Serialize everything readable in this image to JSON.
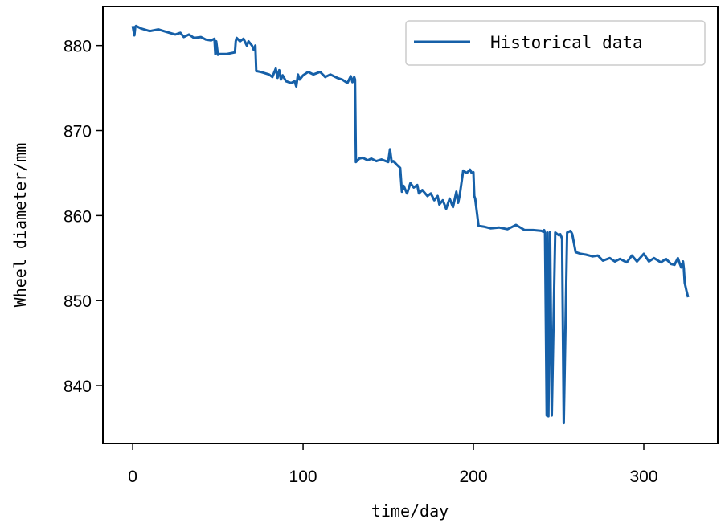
{
  "chart_data": {
    "type": "line",
    "title": "",
    "xlabel": "time/day",
    "ylabel": "Wheel diameter/mm",
    "xlim": [
      -17.5,
      343.4
    ],
    "ylim": [
      833.2,
      884.6
    ],
    "xticks": [
      0,
      100,
      200,
      300
    ],
    "yticks": [
      840,
      850,
      860,
      870,
      880
    ],
    "grid": false,
    "legend_position": "top-right",
    "line_color": "#1660a8",
    "series": [
      {
        "name": "Historical data",
        "x": [
          0,
          1,
          1.5,
          2,
          5,
          10,
          15,
          20,
          25,
          28,
          30,
          33,
          36,
          40,
          43,
          46,
          48,
          48.5,
          49,
          50,
          51,
          55,
          60,
          60.5,
          61,
          63,
          65,
          67,
          68,
          70,
          71,
          72,
          72.5,
          75,
          80,
          82,
          84,
          85,
          86,
          87,
          88,
          90,
          93,
          95,
          96,
          97,
          98,
          100,
          103,
          106,
          110,
          113,
          116,
          120,
          123,
          126,
          128,
          129,
          130,
          130.5,
          131,
          133,
          135,
          138,
          140,
          143,
          146,
          150,
          151,
          152,
          153,
          155,
          157,
          158,
          159,
          161,
          163,
          165,
          167,
          168,
          170,
          173,
          175,
          177,
          179,
          180,
          182,
          184,
          186,
          188,
          190,
          191,
          192,
          194,
          196,
          198,
          199,
          200,
          200.5,
          201,
          203,
          206,
          210,
          215,
          220,
          225,
          230,
          235,
          240,
          241,
          241.5,
          242,
          243,
          243.5,
          244,
          245,
          246,
          248,
          250,
          251,
          252,
          253,
          255,
          256,
          257,
          258,
          260,
          263,
          266,
          270,
          273,
          276,
          280,
          283,
          286,
          290,
          293,
          296,
          300,
          303,
          306,
          310,
          313,
          316,
          318,
          320,
          321,
          322,
          323,
          323.5,
          324,
          325,
          326
        ],
        "y": [
          882.3,
          881.2,
          882.2,
          882.3,
          882,
          881.7,
          881.9,
          881.6,
          881.3,
          881.5,
          881,
          881.3,
          880.9,
          881,
          880.7,
          880.6,
          880.8,
          879,
          880.5,
          878.9,
          879,
          879,
          879.2,
          880.5,
          880.9,
          880.5,
          880.8,
          880,
          880.5,
          880,
          879.5,
          880,
          877,
          876.9,
          876.6,
          876.3,
          877.3,
          876.2,
          877.1,
          876,
          876.5,
          875.8,
          875.6,
          875.8,
          875.2,
          876.6,
          876,
          876.5,
          876.9,
          876.6,
          876.9,
          876.3,
          876.6,
          876.2,
          876,
          875.6,
          876.4,
          875.7,
          876.3,
          876,
          866.3,
          866.7,
          866.8,
          866.5,
          866.7,
          866.4,
          866.6,
          866.3,
          867.8,
          866.3,
          866.4,
          866,
          865.6,
          862.8,
          863.5,
          862.6,
          863.8,
          863.3,
          863.6,
          862.6,
          863,
          862.3,
          862.6,
          861.8,
          862.3,
          861.3,
          861.8,
          860.8,
          862,
          861,
          862.8,
          861.5,
          862.5,
          865.3,
          865,
          865.4,
          865,
          865.1,
          862.3,
          862,
          858.8,
          858.7,
          858.5,
          858.6,
          858.4,
          858.9,
          858.3,
          858.3,
          858.2,
          858.1,
          858.3,
          858,
          836.5,
          858,
          836.4,
          858.1,
          836.5,
          858,
          857.7,
          857.8,
          857.3,
          835.6,
          858,
          858.1,
          858.2,
          857.8,
          855.7,
          855.5,
          855.4,
          855.2,
          855.3,
          854.7,
          855,
          854.6,
          854.9,
          854.5,
          855.3,
          854.6,
          855.5,
          854.6,
          855,
          854.5,
          854.9,
          854.3,
          854.2,
          855,
          854.4,
          853.9,
          854.6,
          853.8,
          852.1,
          851.2,
          850.4
        ]
      }
    ]
  }
}
